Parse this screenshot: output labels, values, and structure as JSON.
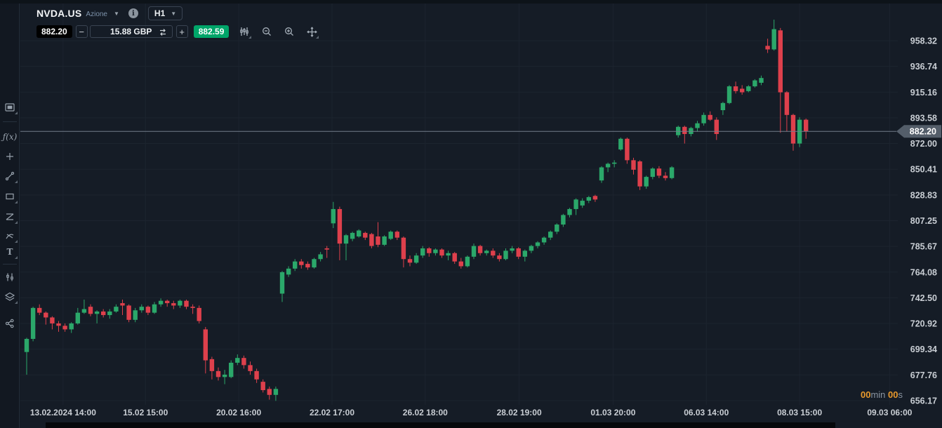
{
  "header": {
    "symbol": "NVDA.US",
    "instrument_type": "Azione",
    "timeframe": "H1",
    "bid_price": "882.20",
    "quantity": "15.88 GBP",
    "ask_price": "882.59",
    "minus_label": "−",
    "plus_label": "+"
  },
  "sidebar": {
    "fx_label": "ƒ(x)",
    "text_label": "T"
  },
  "timer": {
    "minutes": "00",
    "min_unit": "min",
    "seconds": "00",
    "sec_unit": "s"
  },
  "colors": {
    "background": "#151c26",
    "up_candle": "#2ba86a",
    "down_candle": "#de404c",
    "ask_badge_green": "#00a569",
    "timer_orange": "#e8992c",
    "grid": "#1c242f",
    "axis_text": "#c9ced4",
    "price_line": "#727d8a",
    "price_tag_bg": "#545e6a"
  },
  "icons": {
    "sidebar": [
      "chart-type-icon",
      "indicators-fx-icon",
      "crosshair-icon",
      "trendline-icon",
      "rectangle-icon",
      "fibonacci-icon",
      "curve-tool-icon",
      "text-tool-icon",
      "candle-settings-icon",
      "layers-icon",
      "share-icon"
    ],
    "toolbar": [
      "chevron-down-icon",
      "info-icon",
      "swap-icon",
      "candle-style-icon",
      "zoom-out-icon",
      "zoom-in-icon",
      "pan-icon"
    ]
  },
  "chart_data": {
    "type": "candlestick",
    "symbol": "NVDA.US",
    "timeframe": "H1",
    "current_price": 882.2,
    "current_price_label": "882.20",
    "ylim": [
      656.17,
      958.32
    ],
    "grid": true,
    "y_ticks": [
      958.32,
      936.74,
      915.16,
      893.58,
      872.0,
      850.41,
      828.83,
      807.25,
      785.67,
      764.08,
      742.5,
      720.92,
      699.34,
      677.76,
      656.17
    ],
    "x_ticks": [
      "13.02.2024 14:00",
      "15.02 15:00",
      "20.02 16:00",
      "22.02 17:00",
      "26.02 18:00",
      "28.02 19:00",
      "01.03 20:00",
      "06.03 14:00",
      "08.03 15:00",
      "09.03 06:00"
    ],
    "x_tick_indices": [
      5.7,
      18.6,
      33.2,
      47.8,
      62.4,
      77.1,
      91.8,
      106.4,
      121.0,
      135.1
    ],
    "candles": [
      [
        697,
        709,
        678,
        708
      ],
      [
        708,
        735,
        706,
        734
      ],
      [
        734,
        737,
        728,
        730
      ],
      [
        730,
        731,
        720,
        726
      ],
      [
        726,
        727,
        716,
        721
      ],
      [
        721,
        723,
        714,
        719
      ],
      [
        719,
        721,
        714,
        716
      ],
      [
        716,
        722,
        713,
        721
      ],
      [
        721,
        734,
        720,
        730
      ],
      [
        730,
        741,
        729,
        733
      ],
      [
        735,
        737,
        727,
        729
      ],
      [
        729,
        732,
        721,
        731
      ],
      [
        731,
        733,
        726,
        728
      ],
      [
        728,
        733,
        725,
        731
      ],
      [
        731,
        737,
        730,
        735
      ],
      [
        738,
        741,
        728,
        736
      ],
      [
        736,
        737,
        722,
        724
      ],
      [
        724,
        734,
        722,
        732
      ],
      [
        732,
        737,
        730,
        735
      ],
      [
        735,
        736,
        728,
        730
      ],
      [
        730,
        739,
        729,
        737
      ],
      [
        737,
        742,
        735,
        740
      ],
      [
        740,
        741,
        735,
        738
      ],
      [
        738,
        740,
        733,
        736
      ],
      [
        736,
        741,
        734,
        740
      ],
      [
        740,
        741,
        733,
        735
      ],
      [
        735,
        737,
        729,
        734
      ],
      [
        734,
        736,
        721,
        723
      ],
      [
        716,
        718,
        679,
        690
      ],
      [
        691,
        693,
        674,
        681
      ],
      [
        681,
        684,
        673,
        676
      ],
      [
        676,
        682,
        670,
        678
      ],
      [
        676,
        690,
        675,
        688
      ],
      [
        688,
        695,
        686,
        692
      ],
      [
        692,
        694,
        683,
        686
      ],
      [
        686,
        689,
        678,
        681
      ],
      [
        681,
        683,
        671,
        674
      ],
      [
        672,
        674,
        663,
        665
      ],
      [
        666,
        668,
        657,
        661
      ],
      [
        661,
        668,
        656,
        666
      ],
      [
        746,
        765,
        739,
        764
      ],
      [
        762,
        769,
        760,
        767
      ],
      [
        767,
        775,
        765,
        773
      ],
      [
        773,
        775,
        767,
        770
      ],
      [
        771,
        773,
        766,
        768
      ],
      [
        768,
        776,
        767,
        775
      ],
      [
        775,
        781,
        773,
        779
      ],
      [
        784,
        786,
        776,
        783
      ],
      [
        805,
        823,
        801,
        817
      ],
      [
        817,
        819,
        774,
        788
      ],
      [
        788,
        796,
        774,
        795
      ],
      [
        792,
        798,
        790,
        797
      ],
      [
        794,
        800,
        793,
        799
      ],
      [
        797,
        798,
        791,
        793
      ],
      [
        796,
        797,
        784,
        786
      ],
      [
        794,
        806,
        785,
        787
      ],
      [
        787,
        795,
        786,
        794
      ],
      [
        792,
        799,
        791,
        798
      ],
      [
        798,
        799,
        791,
        793
      ],
      [
        793,
        794,
        768,
        775
      ],
      [
        775,
        778,
        769,
        772
      ],
      [
        772,
        780,
        771,
        778
      ],
      [
        778,
        786,
        776,
        784
      ],
      [
        784,
        785,
        777,
        780
      ],
      [
        780,
        784,
        778,
        783
      ],
      [
        783,
        784,
        776,
        778
      ],
      [
        778,
        782,
        774,
        780
      ],
      [
        780,
        781,
        771,
        773
      ],
      [
        773,
        776,
        767,
        769
      ],
      [
        769,
        778,
        768,
        777
      ],
      [
        777,
        788,
        775,
        786
      ],
      [
        786,
        787,
        778,
        780
      ],
      [
        780,
        783,
        778,
        782
      ],
      [
        782,
        784,
        776,
        778
      ],
      [
        778,
        780,
        773,
        775
      ],
      [
        775,
        784,
        774,
        782
      ],
      [
        782,
        786,
        780,
        784
      ],
      [
        784,
        785,
        775,
        777
      ],
      [
        777,
        783,
        773,
        782
      ],
      [
        782,
        787,
        780,
        786
      ],
      [
        786,
        790,
        784,
        789
      ],
      [
        789,
        794,
        787,
        793
      ],
      [
        793,
        799,
        791,
        798
      ],
      [
        798,
        805,
        796,
        804
      ],
      [
        804,
        813,
        802,
        812
      ],
      [
        812,
        818,
        810,
        817
      ],
      [
        817,
        826,
        812,
        825
      ],
      [
        820,
        826,
        818,
        824
      ],
      [
        824,
        828,
        822,
        827
      ],
      [
        828,
        829,
        823,
        825
      ],
      [
        841,
        853,
        839,
        852
      ],
      [
        852,
        856,
        848,
        855
      ],
      [
        855,
        858,
        852,
        856
      ],
      [
        867,
        877,
        866,
        876
      ],
      [
        876,
        877,
        855,
        858
      ],
      [
        858,
        860,
        846,
        850
      ],
      [
        857,
        858,
        833,
        836
      ],
      [
        836,
        845,
        834,
        844
      ],
      [
        844,
        852,
        842,
        851
      ],
      [
        851,
        853,
        843,
        845
      ],
      [
        845,
        848,
        841,
        843
      ],
      [
        843,
        853,
        842,
        852
      ],
      [
        879,
        887,
        877,
        886
      ],
      [
        886,
        887,
        872,
        880
      ],
      [
        880,
        886,
        878,
        885
      ],
      [
        885,
        891,
        882,
        889
      ],
      [
        889,
        898,
        887,
        896
      ],
      [
        896,
        899,
        891,
        892
      ],
      [
        892,
        894,
        875,
        880
      ],
      [
        900,
        907,
        896,
        906
      ],
      [
        906,
        921,
        905,
        920
      ],
      [
        920,
        924,
        914,
        916
      ],
      [
        918,
        921,
        913,
        915
      ],
      [
        916,
        921,
        915,
        920
      ],
      [
        920,
        926,
        919,
        925
      ],
      [
        923,
        929,
        921,
        927
      ],
      [
        954,
        960,
        948,
        951
      ],
      [
        951,
        976,
        950,
        968
      ],
      [
        967,
        969,
        881,
        915
      ],
      [
        915,
        916,
        882,
        896
      ],
      [
        896,
        897,
        866,
        872
      ],
      [
        872,
        894,
        869,
        892
      ],
      [
        892,
        893,
        876,
        882.2
      ]
    ]
  }
}
